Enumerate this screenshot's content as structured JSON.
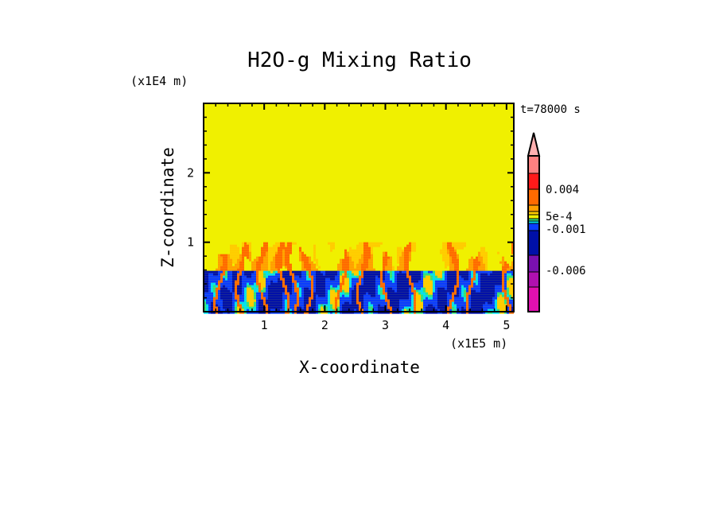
{
  "chart_data": {
    "type": "heatmap",
    "title": "H2O-g Mixing Ratio",
    "xlabel": "X-coordinate",
    "ylabel": "Z-coordinate",
    "x_scale_label": "(x1E5 m)",
    "y_scale_label": "(x1E4 m)",
    "time_label": "t=78000 s",
    "xlim": [
      0,
      5.12
    ],
    "ylim": [
      0,
      3.0
    ],
    "xticks": [
      "1",
      "2",
      "3",
      "4",
      "5"
    ],
    "yticks": [
      "1",
      "2"
    ],
    "xtick_values": [
      1,
      2,
      3,
      4,
      5
    ],
    "ytick_values": [
      1,
      2
    ],
    "colorbar": {
      "labels": [
        "0.004",
        "5e-4",
        "-0.001",
        "-0.006"
      ],
      "label_levels": [
        0.004,
        0.0005,
        -0.001,
        -0.006
      ],
      "colors_top_to_bottom": [
        "#ff8080",
        "#ff1a1a",
        "#ff6a00",
        "#ff9f00",
        "#ffcc00",
        "#f0f000",
        "#33e07a",
        "#00e0f0",
        "#0a3cff",
        "#0010a8",
        "#7a10b0",
        "#b010b0",
        "#e010b0"
      ],
      "extend_top_color": "#ffb0b0"
    },
    "field_description_layers": {
      "upper_level_color": "#f0f000",
      "boundary_layer_top": 0.6,
      "plume_top": 1.0
    }
  }
}
